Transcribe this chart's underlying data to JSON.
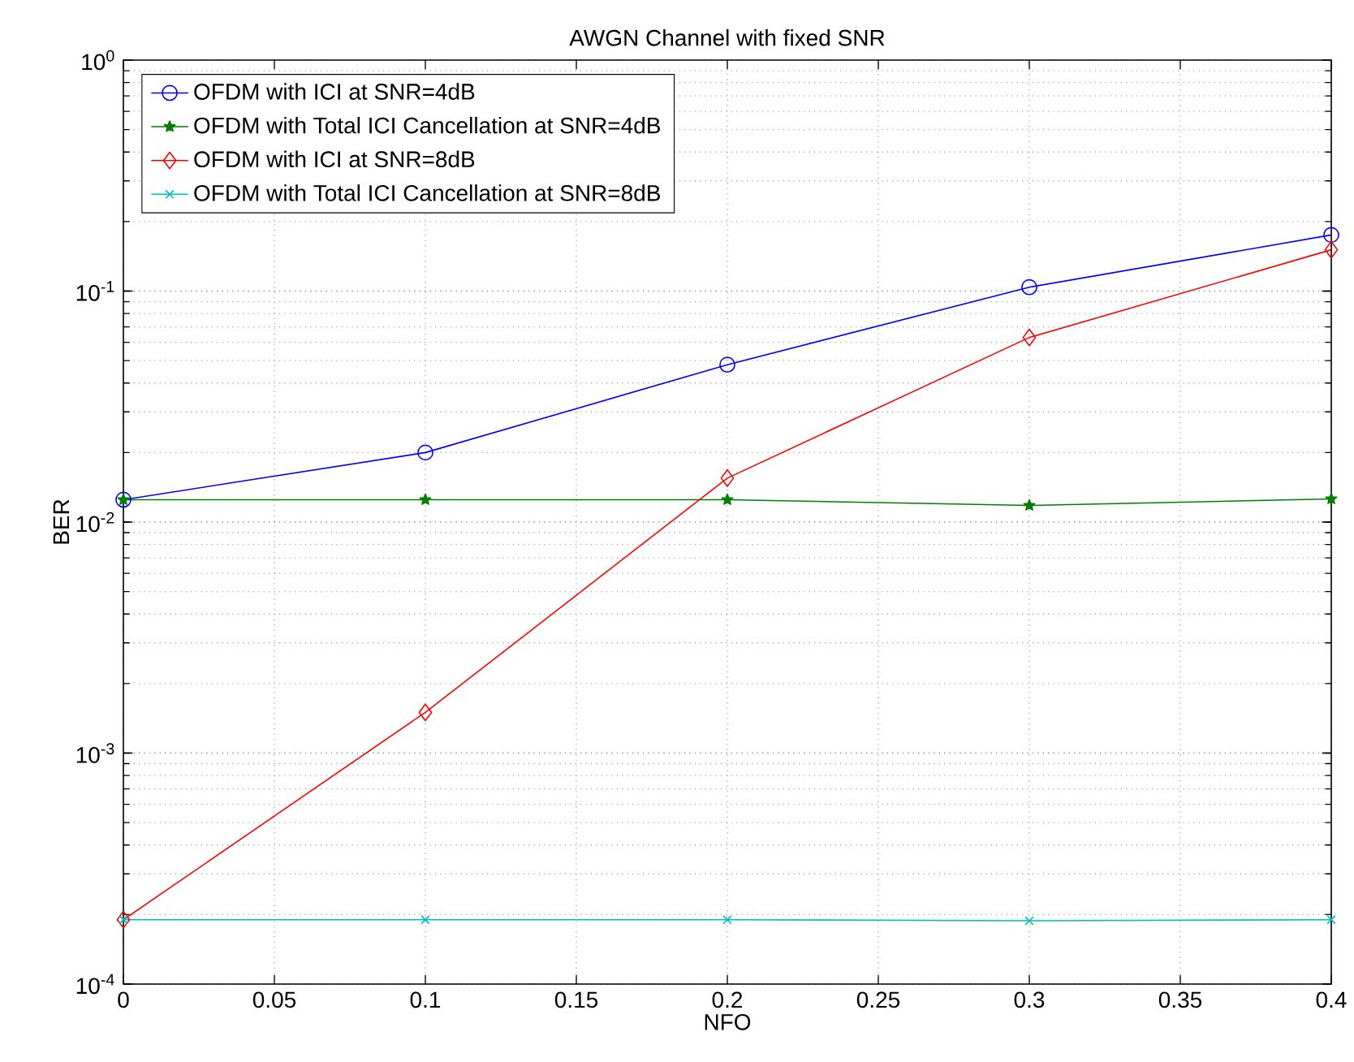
{
  "chart_data": {
    "type": "line",
    "title": "AWGN Channel with fixed SNR",
    "xlabel": "NFO",
    "ylabel": "BER",
    "x": [
      0,
      0.1,
      0.2,
      0.3,
      0.4
    ],
    "series": [
      {
        "name": "OFDM with ICI at SNR=4dB",
        "color": "#0000ff",
        "marker": "circle",
        "values": [
          0.0125,
          0.02,
          0.048,
          0.104,
          0.175
        ]
      },
      {
        "name": "OFDM with Total ICI Cancellation at SNR=4dB",
        "color": "#008000",
        "marker": "star",
        "values": [
          0.0125,
          0.0125,
          0.0125,
          0.0118,
          0.0126
        ]
      },
      {
        "name": "OFDM with ICI at SNR=8dB",
        "color": "#ff0000",
        "marker": "diamond",
        "values": [
          0.00019,
          0.0015,
          0.0155,
          0.063,
          0.151
        ]
      },
      {
        "name": "OFDM with Total ICI Cancellation at SNR=8dB",
        "color": "#00bfbf",
        "marker": "cross",
        "values": [
          0.00019,
          0.00019,
          0.00019,
          0.000188,
          0.00019
        ]
      }
    ],
    "log": "y",
    "grid": true,
    "legend": "top left",
    "line_style": "solid",
    "xlim": [
      0,
      0.4
    ],
    "xticks": [
      0,
      0.05,
      0.1,
      0.15,
      0.2,
      0.25,
      0.3,
      0.35,
      0.4
    ],
    "ylim": [
      0.0001,
      1
    ],
    "yticks": [
      {
        "value": 0.0001,
        "label": "10$^{-4}$"
      },
      {
        "value": 0.001,
        "label": "10$^{-3}$"
      },
      {
        "value": 0.01,
        "label": "10$^{-2}$"
      },
      {
        "value": 0.1,
        "label": "10$^{-1}$"
      },
      {
        "value": 1,
        "label": "10$^{0}$"
      }
    ]
  }
}
